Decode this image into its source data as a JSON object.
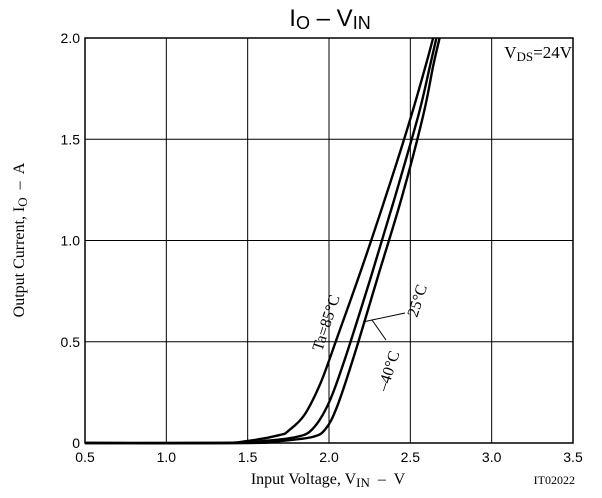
{
  "chart_data": {
    "type": "line",
    "title_main": "I",
    "title_main_sub": "O",
    "title_dash": " – ",
    "title_var": "V",
    "title_var_sub": "IN",
    "xlabel_pre": "Input Voltage, V",
    "xlabel_sub": "IN",
    "xlabel_post": "  –  V",
    "ylabel_pre": "Output Current, I",
    "ylabel_sub": "O",
    "ylabel_post": "  –  A",
    "xlim": [
      0.5,
      3.5
    ],
    "ylim": [
      0,
      2.0
    ],
    "xticks": [
      0.5,
      1.0,
      1.5,
      2.0,
      2.5,
      3.0,
      3.5
    ],
    "xtick_labels": [
      "0.5",
      "1.0",
      "1.5",
      "2.0",
      "2.5",
      "3.0",
      "3.5"
    ],
    "yticks": [
      0,
      0.5,
      1.0,
      1.5,
      2.0
    ],
    "ytick_labels": [
      "0",
      "0.5",
      "1.0",
      "1.5",
      "2.0"
    ],
    "grid": true,
    "condition_pre": "V",
    "condition_sub": "DS",
    "condition_post": "=24V",
    "code": "IT02022",
    "series": [
      {
        "label": "Ta=85°C",
        "x": [
          0.5,
          1.3,
          1.5,
          1.7,
          1.75,
          1.85,
          1.95,
          2.05,
          2.2,
          2.35,
          2.5,
          2.6,
          2.64
        ],
        "y": [
          0,
          0,
          0.01,
          0.04,
          0.06,
          0.14,
          0.3,
          0.52,
          0.86,
          1.22,
          1.6,
          1.88,
          2.0
        ]
      },
      {
        "label": "25°C",
        "x": [
          0.5,
          1.4,
          1.6,
          1.8,
          1.9,
          2.0,
          2.1,
          2.25,
          2.4,
          2.55,
          2.62,
          2.66
        ],
        "y": [
          0,
          0,
          0.01,
          0.03,
          0.07,
          0.2,
          0.42,
          0.8,
          1.2,
          1.62,
          1.86,
          2.0
        ]
      },
      {
        "label": "–40°C",
        "x": [
          0.5,
          1.5,
          1.7,
          1.9,
          1.98,
          2.05,
          2.15,
          2.3,
          2.45,
          2.58,
          2.64,
          2.68
        ],
        "y": [
          0,
          0,
          0.01,
          0.03,
          0.07,
          0.18,
          0.42,
          0.82,
          1.22,
          1.62,
          1.86,
          2.0
        ]
      }
    ]
  }
}
